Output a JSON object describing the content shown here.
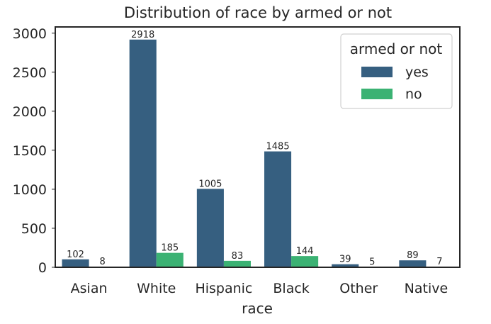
{
  "chart_data": {
    "type": "bar",
    "title": "Distribution of race by armed or not",
    "xlabel": "race",
    "ylabel": "",
    "categories": [
      "Asian",
      "White",
      "Hispanic",
      "Black",
      "Other",
      "Native"
    ],
    "series": [
      {
        "name": "yes",
        "values": [
          102,
          2918,
          1005,
          1485,
          39,
          89
        ],
        "color": "#365f80"
      },
      {
        "name": "no",
        "values": [
          8,
          185,
          83,
          144,
          5,
          7
        ],
        "color": "#3bb273"
      }
    ],
    "ylim": [
      0,
      3080
    ],
    "yticks": [
      0,
      500,
      1000,
      1500,
      2000,
      2500,
      3000
    ],
    "grid": false,
    "legend": {
      "title": "armed or not",
      "placement": "top-right"
    }
  }
}
